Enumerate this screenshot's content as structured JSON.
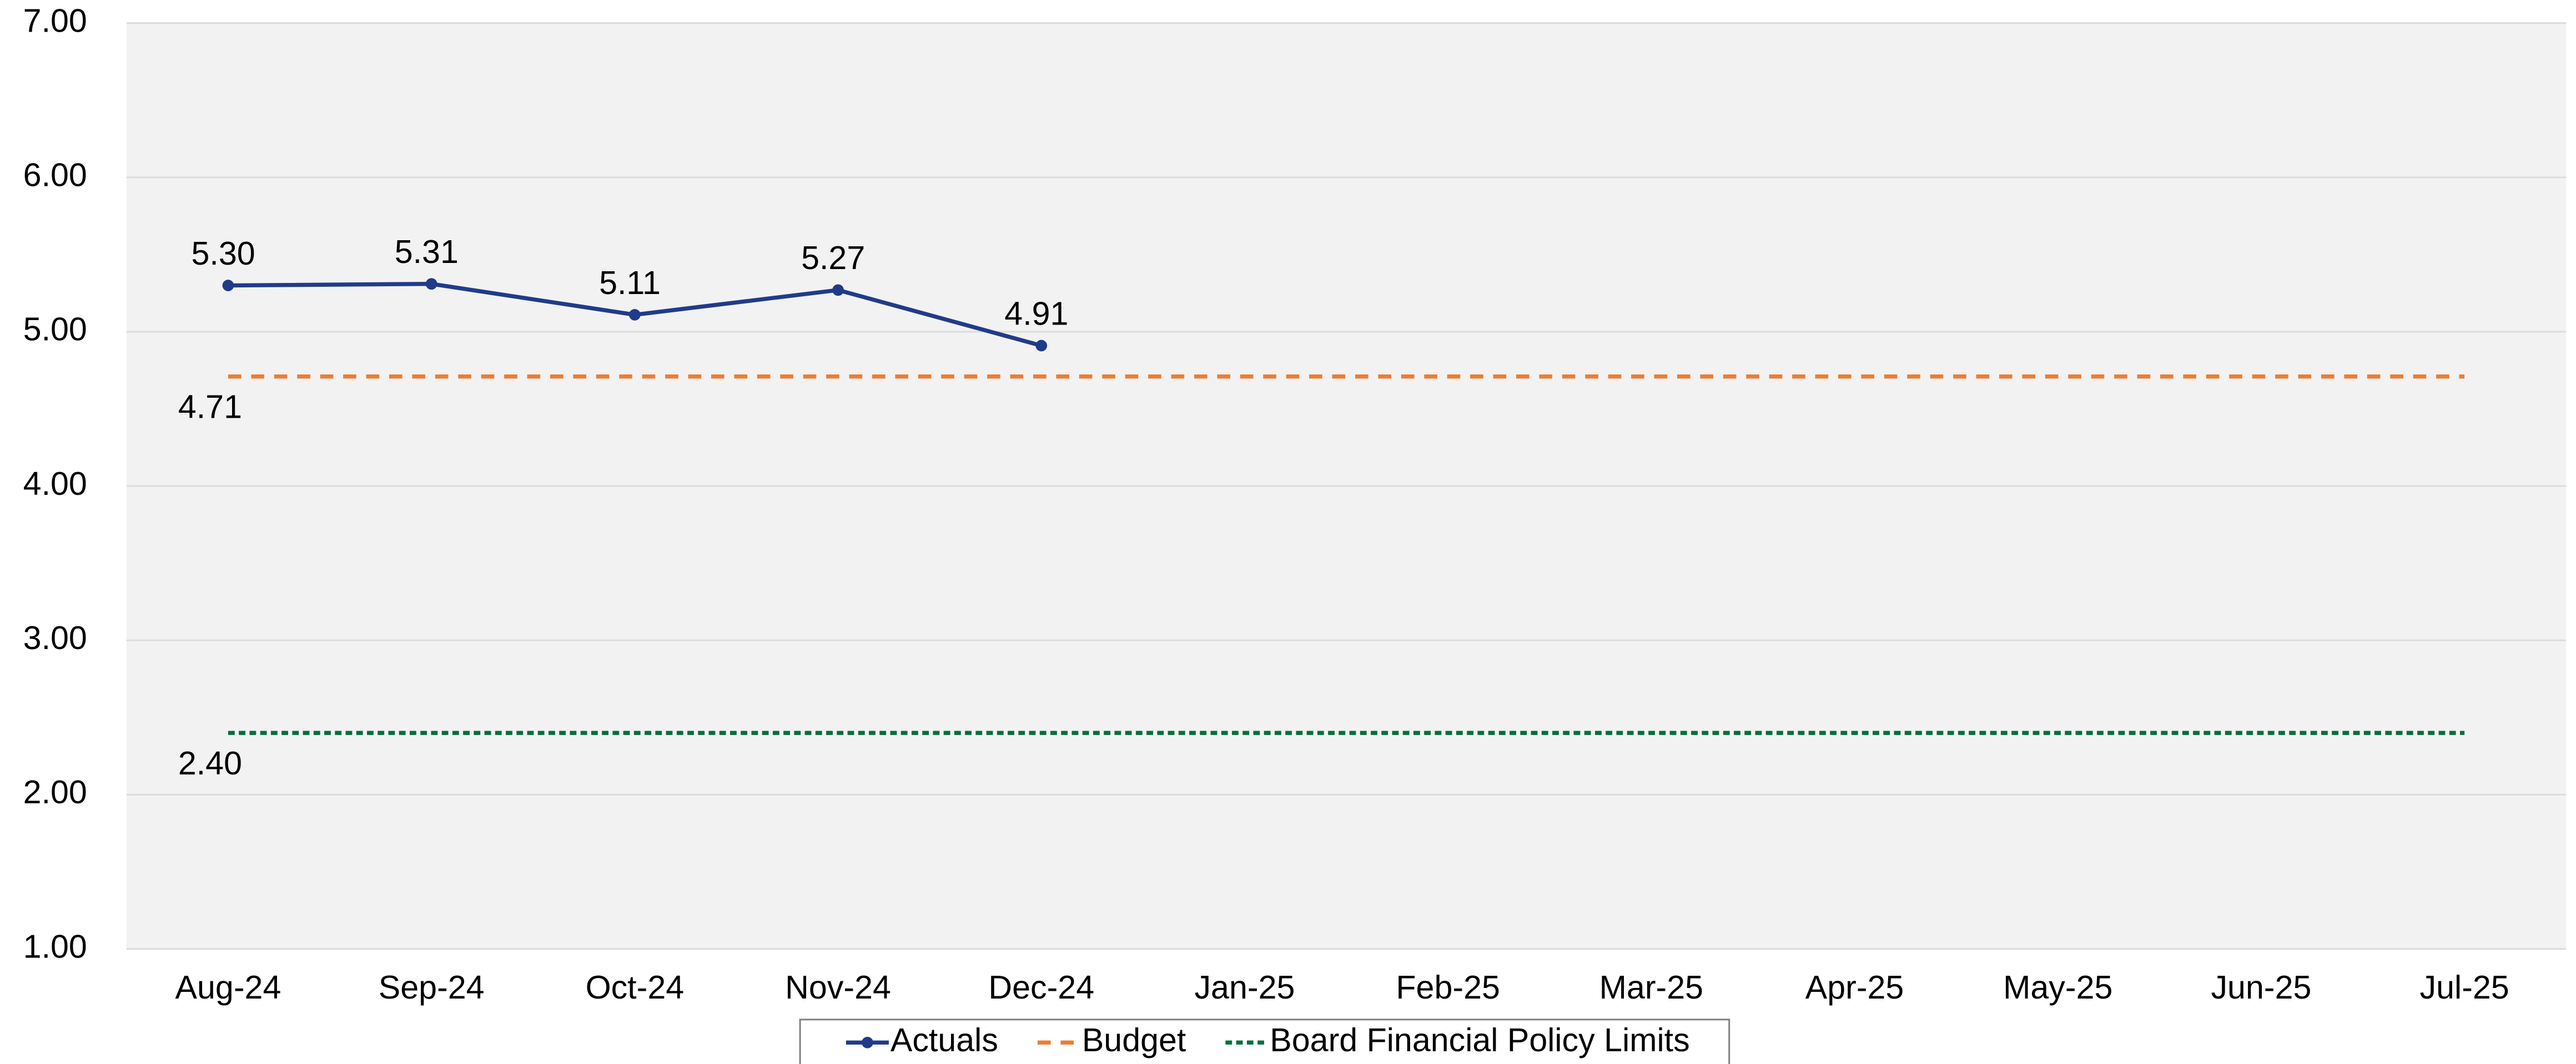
{
  "chart_data": {
    "type": "line",
    "categories": [
      "Aug-24",
      "Sep-24",
      "Oct-24",
      "Nov-24",
      "Dec-24",
      "Jan-25",
      "Feb-25",
      "Mar-25",
      "Apr-25",
      "May-25",
      "Jun-25",
      "Jul-25"
    ],
    "series": [
      {
        "name": "Actuals",
        "color": "#203b89",
        "style": "solid",
        "marker": true,
        "values": [
          5.3,
          5.31,
          5.11,
          5.27,
          4.91,
          null,
          null,
          null,
          null,
          null,
          null,
          null
        ],
        "value_labels": [
          "5.30",
          "5.31",
          "5.11",
          "5.27",
          "4.91",
          null,
          null,
          null,
          null,
          null,
          null,
          null
        ]
      },
      {
        "name": "Budget",
        "color": "#ed7d31",
        "style": "dashed",
        "marker": false,
        "values": [
          4.71,
          4.71,
          4.71,
          4.71,
          4.71,
          4.71,
          4.71,
          4.71,
          4.71,
          4.71,
          4.71,
          4.71
        ],
        "value_labels": [
          "4.71",
          null,
          null,
          null,
          null,
          null,
          null,
          null,
          null,
          null,
          null,
          null
        ]
      },
      {
        "name": "Board Financial Policy Limits",
        "color": "#00703c",
        "style": "dotted",
        "marker": false,
        "values": [
          2.4,
          2.4,
          2.4,
          2.4,
          2.4,
          2.4,
          2.4,
          2.4,
          2.4,
          2.4,
          2.4,
          2.4
        ],
        "value_labels": [
          "2.40",
          null,
          null,
          null,
          null,
          null,
          null,
          null,
          null,
          null,
          null,
          null
        ]
      }
    ],
    "ylim": [
      1,
      7
    ],
    "yticks": [
      {
        "value": 1,
        "label": "1.00"
      },
      {
        "value": 2,
        "label": "2.00"
      },
      {
        "value": 3,
        "label": "3.00"
      },
      {
        "value": 4,
        "label": "4.00"
      },
      {
        "value": 5,
        "label": "5.00"
      },
      {
        "value": 6,
        "label": "6.00"
      },
      {
        "value": 7,
        "label": "7.00"
      }
    ],
    "grid": true,
    "legend": "bottom"
  }
}
